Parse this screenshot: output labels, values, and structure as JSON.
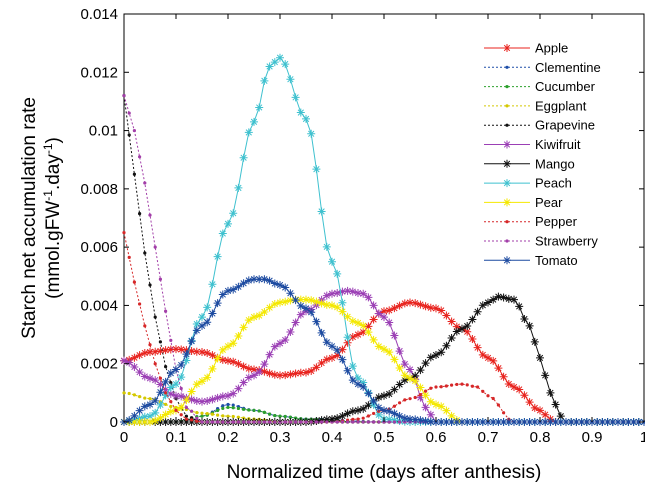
{
  "chart_data": {
    "type": "line",
    "title": "",
    "xlabel": "Normalized time (days after anthesis)",
    "ylabel": {
      "line1": "Starch net accumulation rate",
      "line2_prefix": "(mmol.gFW",
      "line2_sup1": "-1",
      "line2_mid": ".day",
      "line2_sup2": "-1",
      "line2_suffix": ")"
    },
    "xlim": [
      0,
      1
    ],
    "ylim": [
      0,
      0.014
    ],
    "xticks": [
      "0",
      "0.1",
      "0.2",
      "0.3",
      "0.4",
      "0.5",
      "0.6",
      "0.7",
      "0.8",
      "0.9",
      "1"
    ],
    "yticks": [
      "0",
      "0.002",
      "0.004",
      "0.006",
      "0.008",
      "0.01",
      "0.012",
      "0.014"
    ],
    "grid": false,
    "legend_position": "top-right",
    "series": [
      {
        "name": "Apple",
        "color": "#e8231e",
        "marker": "asterisk",
        "dashed": false,
        "x": [
          0,
          0.05,
          0.1,
          0.15,
          0.2,
          0.25,
          0.3,
          0.35,
          0.4,
          0.45,
          0.5,
          0.55,
          0.6,
          0.65,
          0.7,
          0.75,
          0.8,
          0.82,
          0.83
        ],
        "y": [
          0.0021,
          0.0024,
          0.0025,
          0.0024,
          0.0021,
          0.0018,
          0.0016,
          0.0017,
          0.0022,
          0.003,
          0.0038,
          0.0041,
          0.0039,
          0.0032,
          0.0022,
          0.0012,
          0.0004,
          0.0001,
          0
        ]
      },
      {
        "name": "Clementine",
        "color": "#1f4fa8",
        "marker": "dot",
        "dashed": true,
        "x": [
          0,
          0.1,
          0.15,
          0.2,
          0.25,
          0.3,
          0.35,
          0.5,
          1
        ],
        "y": [
          0,
          0,
          0.0002,
          0.0006,
          0.0004,
          0.0002,
          0.0001,
          0,
          0
        ]
      },
      {
        "name": "Cucumber",
        "color": "#2ca02c",
        "marker": "dot",
        "dashed": true,
        "x": [
          0,
          0.1,
          0.15,
          0.2,
          0.25,
          0.3,
          0.35,
          0.45,
          1
        ],
        "y": [
          0,
          0,
          0.0002,
          0.0005,
          0.0004,
          0.0002,
          0.0001,
          0,
          0
        ]
      },
      {
        "name": "Eggplant",
        "color": "#d4c800",
        "marker": "dot",
        "dashed": true,
        "x": [
          0,
          0.05,
          0.1,
          0.15,
          0.2,
          0.25,
          0.3,
          0.4,
          1
        ],
        "y": [
          0.001,
          0.0008,
          0.0005,
          0.0003,
          0.0002,
          0.0001,
          0,
          0,
          0
        ]
      },
      {
        "name": "Grapevine",
        "color": "#111111",
        "marker": "dot",
        "dashed": true,
        "x": [
          0,
          0.02,
          0.04,
          0.06,
          0.08,
          0.1,
          0.12,
          0.15,
          0.2,
          1
        ],
        "y": [
          0.0112,
          0.0085,
          0.0058,
          0.0036,
          0.0019,
          0.0008,
          0.0002,
          0,
          0,
          0
        ]
      },
      {
        "name": "Kiwifruit",
        "color": "#9b3fb5",
        "marker": "asterisk",
        "dashed": false,
        "x": [
          0,
          0.05,
          0.1,
          0.15,
          0.2,
          0.25,
          0.3,
          0.35,
          0.4,
          0.43,
          0.46,
          0.5,
          0.55,
          0.58,
          0.6
        ],
        "y": [
          0.0021,
          0.0015,
          0.0009,
          0.0007,
          0.0009,
          0.0016,
          0.0027,
          0.0038,
          0.0044,
          0.0045,
          0.0044,
          0.0036,
          0.0018,
          0.0005,
          0
        ]
      },
      {
        "name": "Mango",
        "color": "#111111",
        "marker": "asterisk",
        "dashed": false,
        "x": [
          0,
          0.35,
          0.4,
          0.45,
          0.5,
          0.55,
          0.6,
          0.65,
          0.7,
          0.72,
          0.75,
          0.78,
          0.8,
          0.82,
          0.84,
          0.85,
          1
        ],
        "y": [
          0,
          0,
          0.0001,
          0.0004,
          0.0009,
          0.0015,
          0.0023,
          0.0032,
          0.0041,
          0.0043,
          0.0042,
          0.0033,
          0.0022,
          0.001,
          0.0002,
          0,
          0
        ]
      },
      {
        "name": "Peach",
        "color": "#3fc1cf",
        "marker": "asterisk",
        "dashed": false,
        "x": [
          0,
          0.05,
          0.1,
          0.15,
          0.2,
          0.25,
          0.28,
          0.3,
          0.35,
          0.4,
          0.45,
          0.5,
          0.55,
          1
        ],
        "y": [
          0,
          0.0002,
          0.0013,
          0.0036,
          0.0068,
          0.0103,
          0.0122,
          0.0125,
          0.0104,
          0.0055,
          0.0015,
          0.0001,
          0,
          0
        ]
      },
      {
        "name": "Pear",
        "color": "#f4e800",
        "marker": "asterisk",
        "dashed": false,
        "x": [
          0,
          0.05,
          0.1,
          0.15,
          0.2,
          0.25,
          0.3,
          0.33,
          0.35,
          0.4,
          0.45,
          0.5,
          0.55,
          0.6,
          0.65
        ],
        "y": [
          0,
          0,
          0.0004,
          0.0014,
          0.0026,
          0.0036,
          0.0041,
          0.0042,
          0.0042,
          0.004,
          0.0034,
          0.0025,
          0.0015,
          0.0006,
          0
        ]
      },
      {
        "name": "Pepper",
        "color": "#d62728",
        "marker": "dot",
        "dashed": true,
        "x": [
          0,
          0.02,
          0.04,
          0.06,
          0.08,
          0.1,
          0.12,
          0.15,
          0.4,
          0.45,
          0.5,
          0.55,
          0.6,
          0.65,
          0.68,
          0.7,
          0.75,
          1
        ],
        "y": [
          0.0065,
          0.0048,
          0.0033,
          0.002,
          0.001,
          0.0004,
          0.0001,
          0,
          0,
          0.0001,
          0.0004,
          0.0008,
          0.0012,
          0.0013,
          0.0012,
          0.0009,
          0,
          0
        ]
      },
      {
        "name": "Strawberry",
        "color": "#a23ea8",
        "marker": "dot",
        "dashed": true,
        "x": [
          0,
          0.02,
          0.04,
          0.06,
          0.08,
          0.1,
          0.12,
          0.15,
          1
        ],
        "y": [
          0.0112,
          0.01,
          0.0082,
          0.006,
          0.0038,
          0.0018,
          0.0005,
          0,
          0
        ]
      },
      {
        "name": "Tomato",
        "color": "#1c4aa0",
        "marker": "asterisk",
        "dashed": false,
        "x": [
          0,
          0.05,
          0.1,
          0.15,
          0.2,
          0.25,
          0.27,
          0.3,
          0.35,
          0.4,
          0.45,
          0.5,
          0.55,
          0.6,
          1
        ],
        "y": [
          0,
          0.0006,
          0.0018,
          0.0033,
          0.0045,
          0.0049,
          0.0049,
          0.0047,
          0.0039,
          0.0026,
          0.0013,
          0.0004,
          0.0001,
          0,
          0
        ]
      }
    ]
  }
}
